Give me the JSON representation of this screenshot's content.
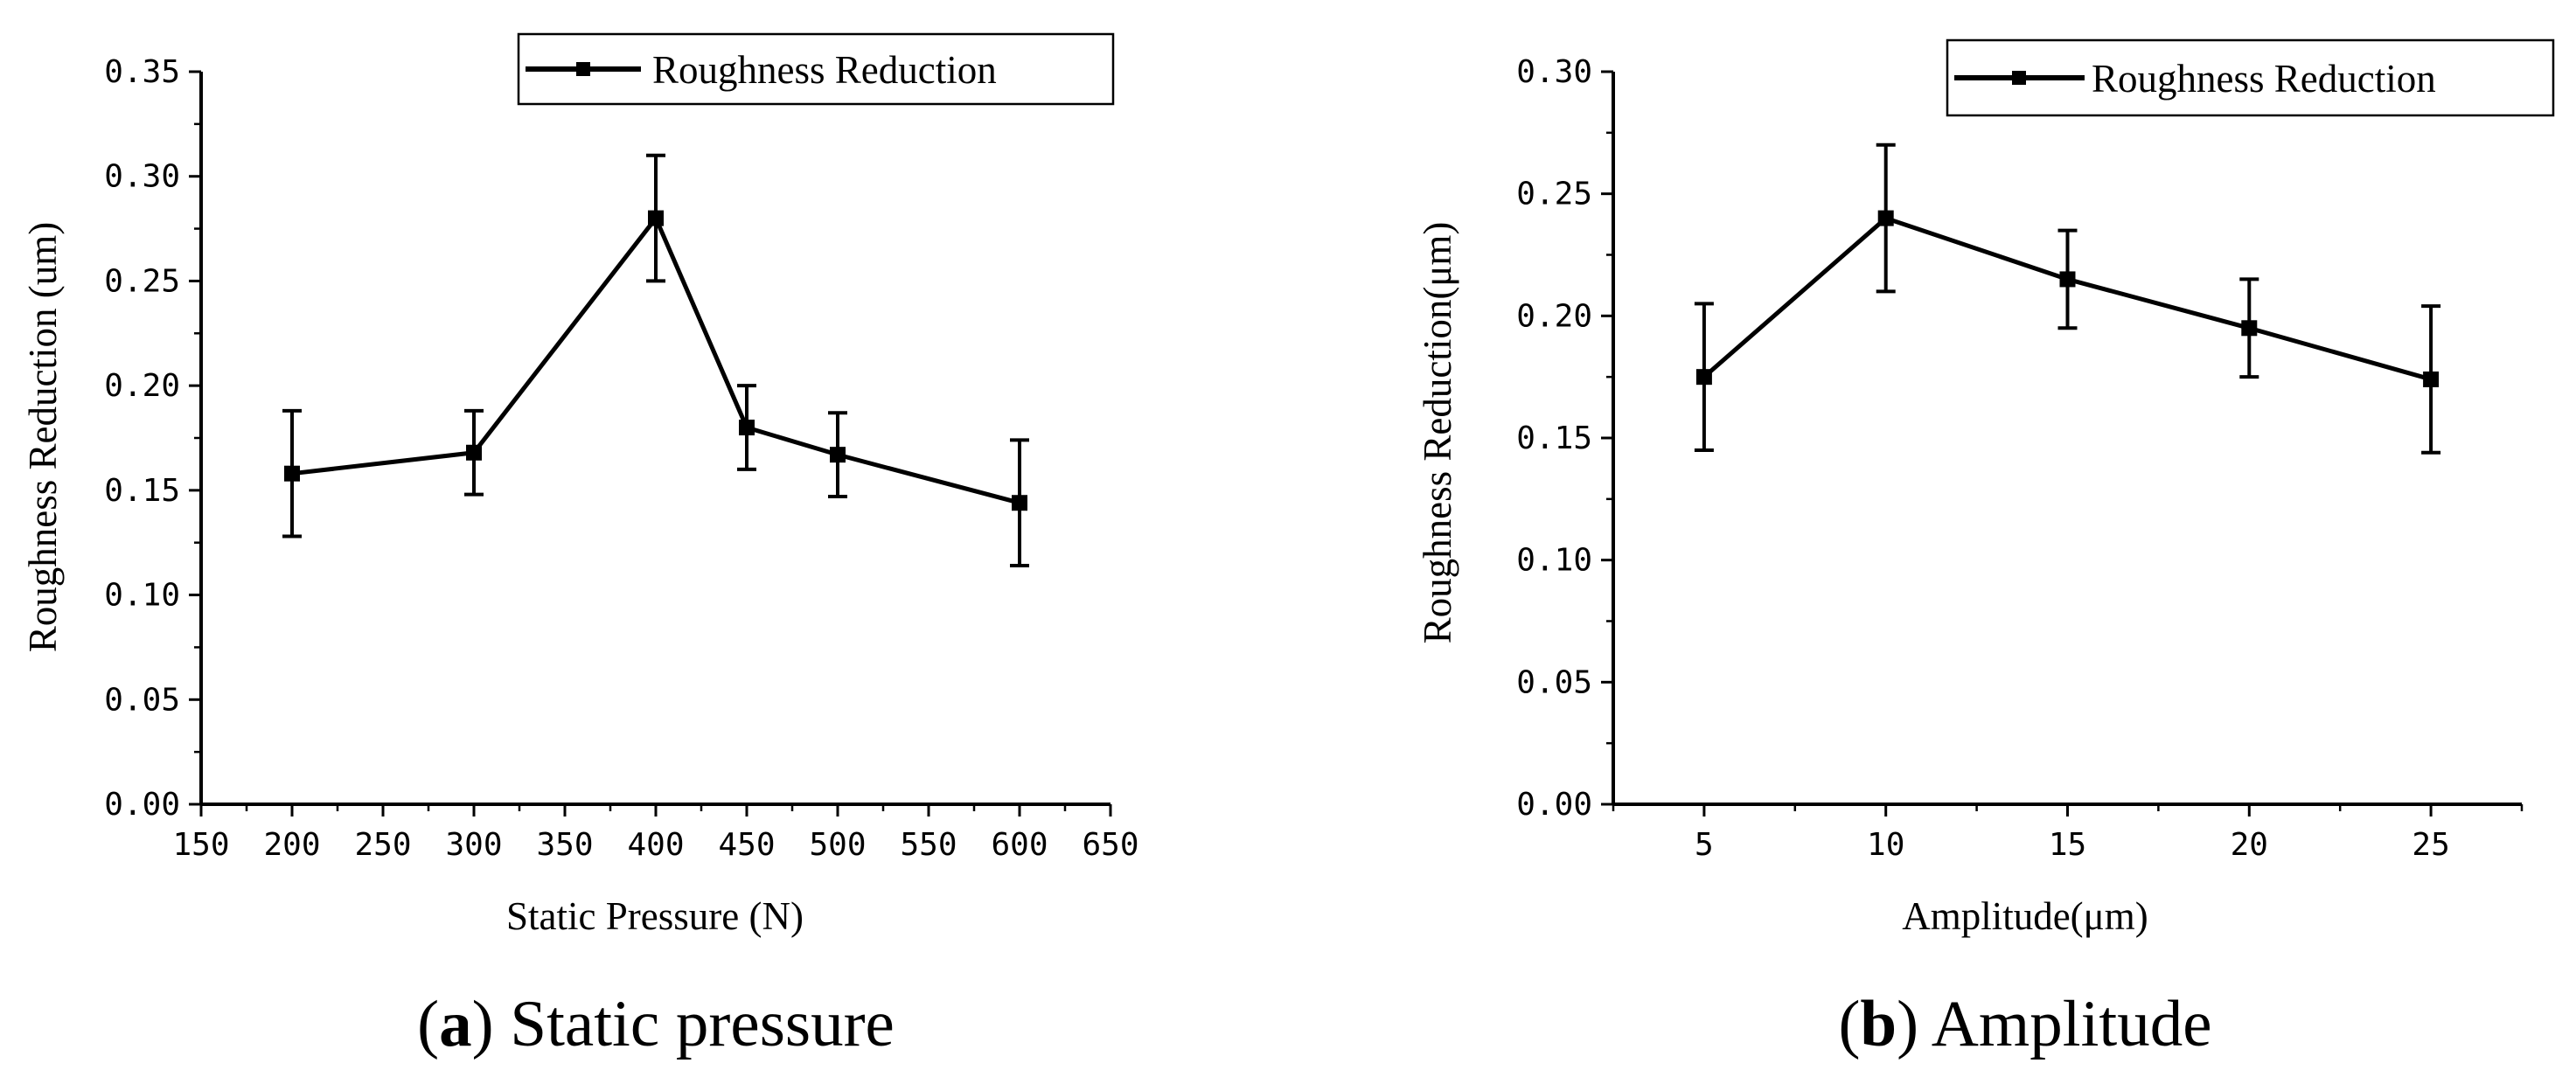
{
  "chart_data": [
    {
      "type": "line",
      "caption": {
        "letter": "a",
        "text": "Static pressure"
      },
      "xlabel": "Static Pressure (N)",
      "ylabel": "Roughness Reduction (um)",
      "xlim": [
        150,
        650
      ],
      "ylim": [
        0,
        0.35
      ],
      "xticks": [
        "150",
        "200",
        "250",
        "300",
        "350",
        "400",
        "450",
        "500",
        "550",
        "600",
        "650"
      ],
      "yticks": [
        "0.00",
        "0.05",
        "0.10",
        "0.15",
        "0.20",
        "0.25",
        "0.30",
        "0.35"
      ],
      "legend": "top-right",
      "series": [
        {
          "name": "Roughness Reduction",
          "x": [
            200,
            300,
            400,
            450,
            500,
            600
          ],
          "y": [
            0.158,
            0.168,
            0.28,
            0.18,
            0.167,
            0.144
          ],
          "err": [
            0.03,
            0.02,
            0.03,
            0.02,
            0.02,
            0.03
          ]
        }
      ]
    },
    {
      "type": "line",
      "caption": {
        "letter": "b",
        "text": "Amplitude"
      },
      "xlabel": "Amplitude(μm)",
      "ylabel": "Roughness Reduction(μm)",
      "xlim": [
        2.5,
        27.5
      ],
      "ylim": [
        0,
        0.3
      ],
      "xticks": [
        "5",
        "10",
        "15",
        "20",
        "25"
      ],
      "yticks": [
        "0.00",
        "0.05",
        "0.10",
        "0.15",
        "0.20",
        "0.25",
        "0.30"
      ],
      "legend": "top-right",
      "series": [
        {
          "name": "Roughness Reduction",
          "x": [
            5,
            10,
            15,
            20,
            25
          ],
          "y": [
            0.175,
            0.24,
            0.215,
            0.195,
            0.174
          ],
          "err": [
            0.03,
            0.03,
            0.02,
            0.02,
            0.03
          ]
        }
      ]
    }
  ]
}
